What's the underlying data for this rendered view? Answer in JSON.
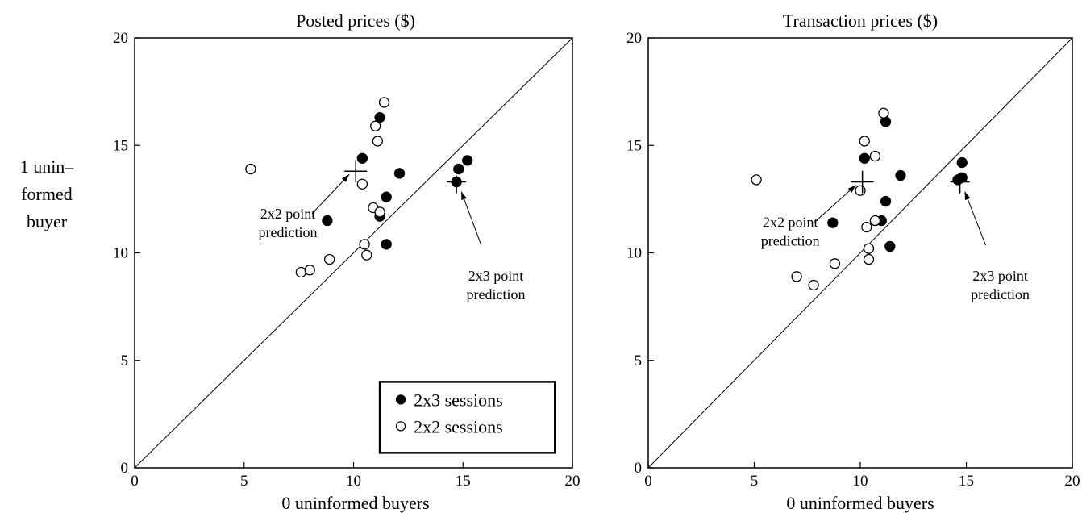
{
  "figure": {
    "ylabel_lines": [
      "1 unin–",
      "formed",
      "buyer"
    ]
  },
  "chart_data": [
    {
      "type": "scatter",
      "title": "Posted prices ($)",
      "xlabel": "0 uninformed buyers",
      "ylabel": "1 unin– formed buyer",
      "xlim": [
        0,
        20
      ],
      "ylim": [
        0,
        20
      ],
      "xticks": [
        0,
        5,
        10,
        15,
        20
      ],
      "yticks": [
        0,
        5,
        10,
        15,
        20
      ],
      "diagonal": true,
      "grid": false,
      "legend": {
        "position": "bottom-right",
        "entries": [
          {
            "series": "2x3",
            "label": "2x3 sessions",
            "marker": "filled-circle"
          },
          {
            "series": "2x2",
            "label": "2x2 sessions",
            "marker": "open-circle"
          }
        ]
      },
      "series": [
        {
          "name": "2x3 sessions",
          "marker": "filled-circle",
          "color": "#000000",
          "points": [
            [
              10.4,
              14.4
            ],
            [
              11.2,
              16.3
            ],
            [
              12.1,
              13.7
            ],
            [
              11.5,
              12.6
            ],
            [
              11.2,
              11.7
            ],
            [
              11.5,
              10.4
            ],
            [
              8.8,
              11.5
            ],
            [
              14.7,
              13.3
            ],
            [
              14.8,
              13.9
            ],
            [
              15.2,
              14.3
            ]
          ]
        },
        {
          "name": "2x2 sessions",
          "marker": "open-circle",
          "color": "#000000",
          "points": [
            [
              5.3,
              13.9
            ],
            [
              11.4,
              17.0
            ],
            [
              11.0,
              15.9
            ],
            [
              11.1,
              15.2
            ],
            [
              10.4,
              13.2
            ],
            [
              10.9,
              12.1
            ],
            [
              11.2,
              11.9
            ],
            [
              10.5,
              10.4
            ],
            [
              10.6,
              9.9
            ],
            [
              8.9,
              9.7
            ],
            [
              7.6,
              9.1
            ],
            [
              8.0,
              9.2
            ]
          ]
        }
      ],
      "predictions": [
        {
          "label": [
            "2x2 point",
            "prediction"
          ],
          "x": 10.1,
          "y": 13.8,
          "label_at": [
            7.0,
            11.6
          ]
        },
        {
          "label": [
            "2x3 point",
            "prediction"
          ],
          "x": 14.7,
          "y": 13.3,
          "label_at": [
            16.5,
            8.7
          ]
        }
      ]
    },
    {
      "type": "scatter",
      "title": "Transaction prices ($)",
      "xlabel": "0 uninformed buyers",
      "ylabel": "1 unin– formed buyer",
      "xlim": [
        0,
        20
      ],
      "ylim": [
        0,
        20
      ],
      "xticks": [
        0,
        5,
        10,
        15,
        20
      ],
      "yticks": [
        0,
        5,
        10,
        15,
        20
      ],
      "diagonal": true,
      "grid": false,
      "series": [
        {
          "name": "2x3 sessions",
          "marker": "filled-circle",
          "color": "#000000",
          "points": [
            [
              10.2,
              14.4
            ],
            [
              11.2,
              16.1
            ],
            [
              11.9,
              13.6
            ],
            [
              11.2,
              12.4
            ],
            [
              11.0,
              11.5
            ],
            [
              11.4,
              10.3
            ],
            [
              8.7,
              11.4
            ],
            [
              14.6,
              13.4
            ],
            [
              14.8,
              13.5
            ],
            [
              14.8,
              14.2
            ]
          ]
        },
        {
          "name": "2x2 sessions",
          "marker": "open-circle",
          "color": "#000000",
          "points": [
            [
              5.1,
              13.4
            ],
            [
              11.1,
              16.5
            ],
            [
              10.2,
              15.2
            ],
            [
              10.7,
              14.5
            ],
            [
              10.0,
              12.9
            ],
            [
              10.3,
              11.2
            ],
            [
              10.7,
              11.5
            ],
            [
              10.4,
              10.2
            ],
            [
              10.4,
              9.7
            ],
            [
              8.8,
              9.5
            ],
            [
              7.0,
              8.9
            ],
            [
              7.8,
              8.5
            ]
          ]
        }
      ],
      "predictions": [
        {
          "label": [
            "2x2 point",
            "prediction"
          ],
          "x": 10.1,
          "y": 13.3,
          "label_at": [
            6.7,
            11.2
          ]
        },
        {
          "label": [
            "2x3 point",
            "prediction"
          ],
          "x": 14.7,
          "y": 13.3,
          "label_at": [
            16.6,
            8.7
          ]
        }
      ]
    }
  ]
}
